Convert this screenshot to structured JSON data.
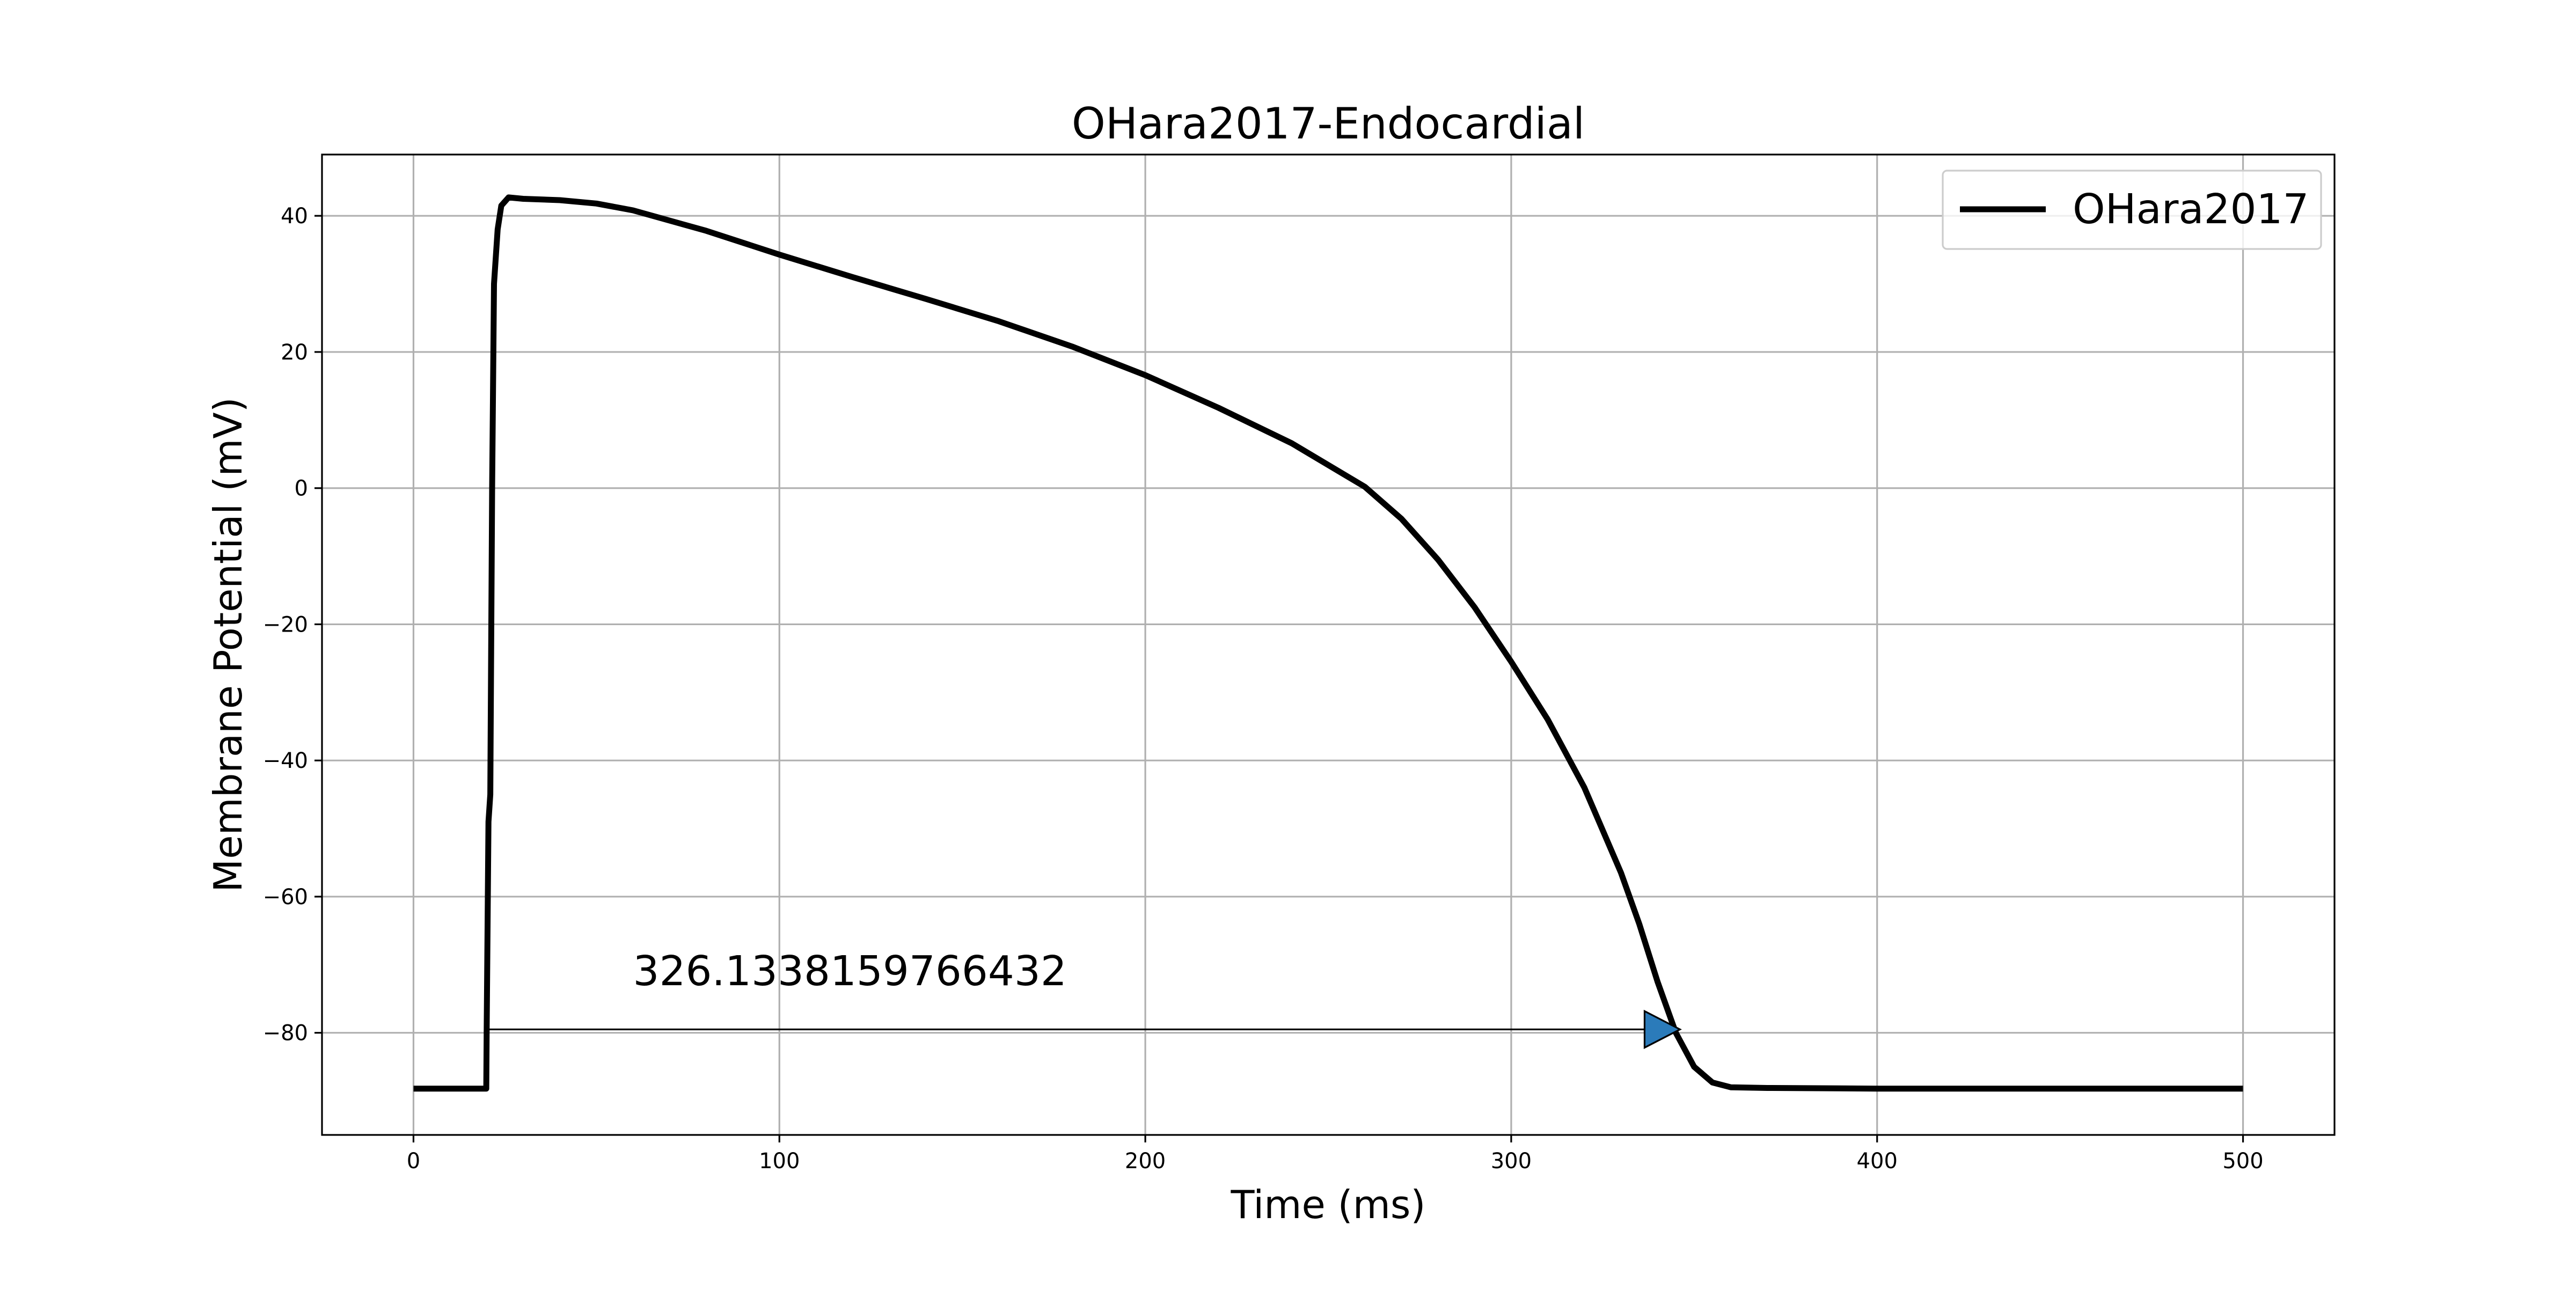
{
  "chart_data": {
    "type": "line",
    "title": "OHara2017-Endocardial",
    "xlabel": "Time (ms)",
    "ylabel": "Membrane Potential (mV)",
    "xlim": [
      -25,
      525
    ],
    "ylim": [
      -95,
      49
    ],
    "x_ticks": [
      0,
      100,
      200,
      300,
      400,
      500
    ],
    "y_ticks": [
      -80,
      -60,
      -40,
      -20,
      0,
      20,
      40
    ],
    "x_tick_labels": [
      "0",
      "100",
      "200",
      "300",
      "400",
      "500"
    ],
    "y_tick_labels": [
      "−80",
      "−60",
      "−40",
      "−20",
      "0",
      "20",
      "40"
    ],
    "grid": true,
    "legend_position": "top-right",
    "series": [
      {
        "name": "OHara2017",
        "color": "#000000",
        "x": [
          0,
          10,
          19.9,
          20,
          20.5,
          21,
          21.5,
          22,
          23,
          24,
          26,
          30,
          40,
          50,
          60,
          80,
          100,
          120,
          140,
          160,
          180,
          200,
          220,
          240,
          260,
          270,
          280,
          290,
          300,
          310,
          320,
          330,
          335,
          340,
          345,
          350,
          355,
          360,
          370,
          400,
          450,
          500
        ],
        "y": [
          -88.2,
          -88.2,
          -88.2,
          -80,
          -49,
          -45,
          0,
          30,
          38,
          41.5,
          42.7,
          42.5,
          42.3,
          41.8,
          40.8,
          37.8,
          34.3,
          31,
          27.8,
          24.5,
          20.8,
          16.6,
          11.8,
          6.6,
          0.2,
          -4.5,
          -10.5,
          -17.5,
          -25.5,
          -34,
          -44,
          -56.5,
          -64,
          -72.5,
          -80,
          -85,
          -87.3,
          -88,
          -88.1,
          -88.2,
          -88.2,
          -88.2
        ]
      }
    ],
    "annotations": [
      {
        "text": "326.1338159766432",
        "text_x": 60,
        "text_y": -73,
        "arrow_from": [
          20,
          -79.5
        ],
        "arrow_to": [
          346.13,
          -79.5
        ],
        "arrow_color": "#2b7bba"
      }
    ]
  }
}
